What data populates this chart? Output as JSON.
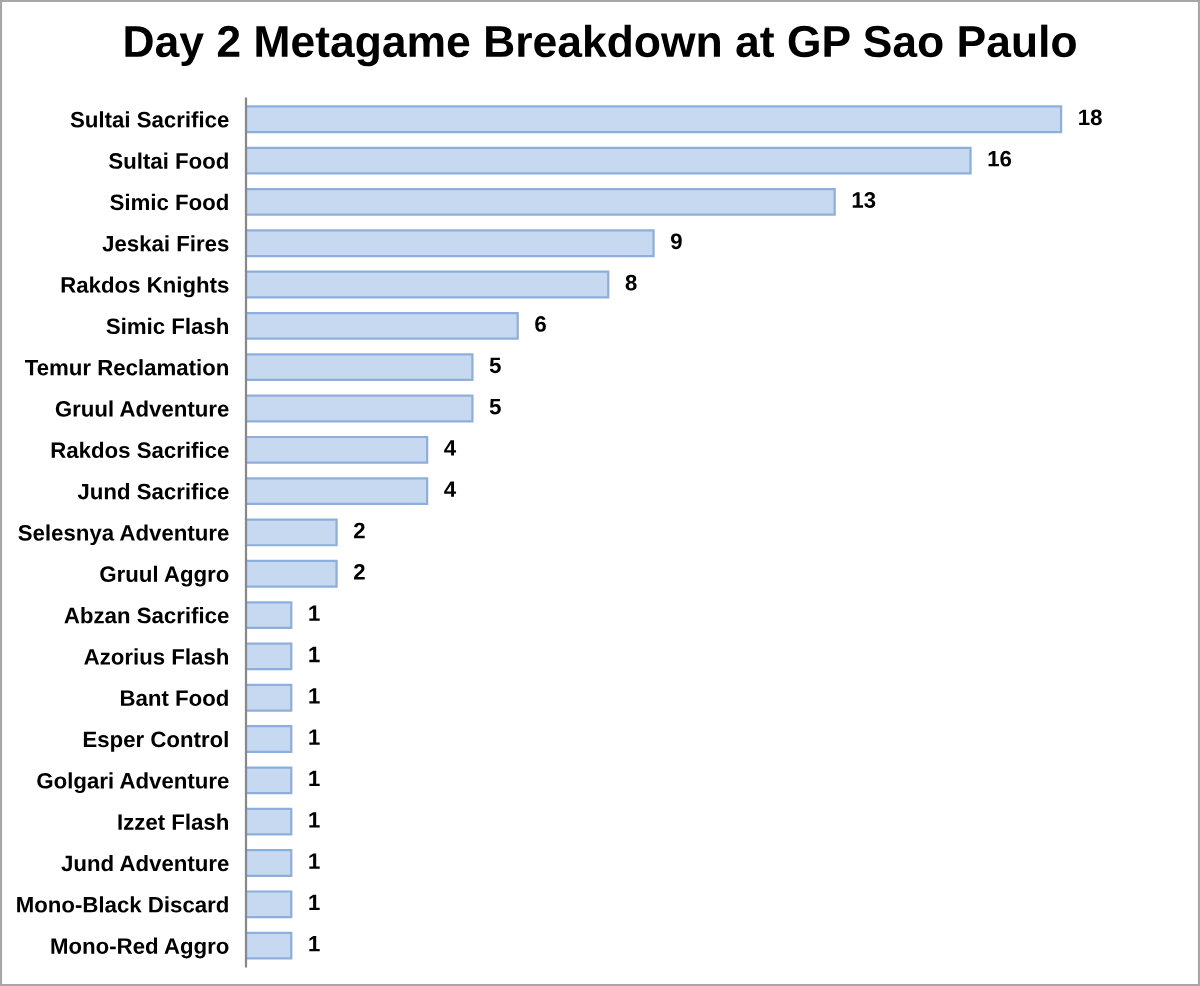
{
  "chart_data": {
    "type": "bar",
    "orientation": "horizontal",
    "title": "Day 2 Metagame Breakdown at GP Sao Paulo",
    "categories": [
      "Sultai Sacrifice",
      "Sultai Food",
      "Simic Food",
      "Jeskai Fires",
      "Rakdos Knights",
      "Simic Flash",
      "Temur Reclamation",
      "Gruul Adventure",
      "Rakdos Sacrifice",
      "Jund Sacrifice",
      "Selesnya Adventure",
      "Gruul Aggro",
      "Abzan Sacrifice",
      "Azorius Flash",
      "Bant Food",
      "Esper Control",
      "Golgari Adventure",
      "Izzet Flash",
      "Jund Adventure",
      "Mono-Black Discard",
      "Mono-Red Aggro"
    ],
    "values": [
      18,
      16,
      13,
      9,
      8,
      6,
      5,
      5,
      4,
      4,
      2,
      2,
      1,
      1,
      1,
      1,
      1,
      1,
      1,
      1,
      1
    ],
    "color": "#c6d9f1",
    "data_labels": true
  }
}
